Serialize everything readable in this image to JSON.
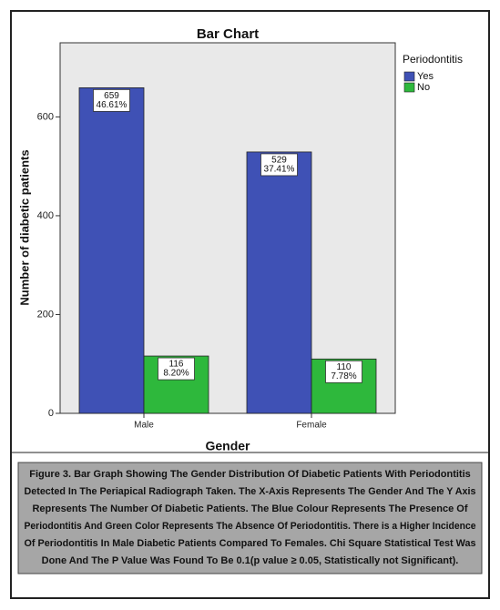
{
  "chart_data": {
    "type": "bar",
    "title": "Bar Chart",
    "x_label": "Gender",
    "y_label": "Number of diabetic patients",
    "categories": [
      "Male",
      "Female"
    ],
    "legend_title": "Periodontitis",
    "series": [
      {
        "name": "Yes",
        "color": "#3f51b5",
        "values": [
          659,
          529
        ],
        "percent_labels": [
          "46.61%",
          "37.41%"
        ]
      },
      {
        "name": "No",
        "color": "#2eb83c",
        "values": [
          116,
          110
        ],
        "percent_labels": [
          "8.20%",
          "7.78%"
        ]
      }
    ],
    "ylim": [
      0,
      750
    ],
    "yticks": [
      0,
      200,
      400,
      600
    ],
    "legend": "right"
  },
  "caption": {
    "lines": [
      "Figure 3.  Bar Graph Showing The Gender Distribution Of Diabetic Patients With Periodontitis",
      "Detected In The Periapical Radiograph Taken. The X-Axis Represents The Gender And The Y Axis",
      "Represents The Number Of Diabetic Patients. The Blue Colour Represents The Presence Of",
      "Periodontitis And Green Color Represents The Absence Of Periodontitis. There is a Higher Incidence",
      "Of Periodontitis In Male Diabetic Patients Compared To Females. Chi Square Statistical Test Was",
      "Done And The P Value Was Found To Be 0.1(p value ≥ 0.05, Statistically not Significant)."
    ]
  }
}
